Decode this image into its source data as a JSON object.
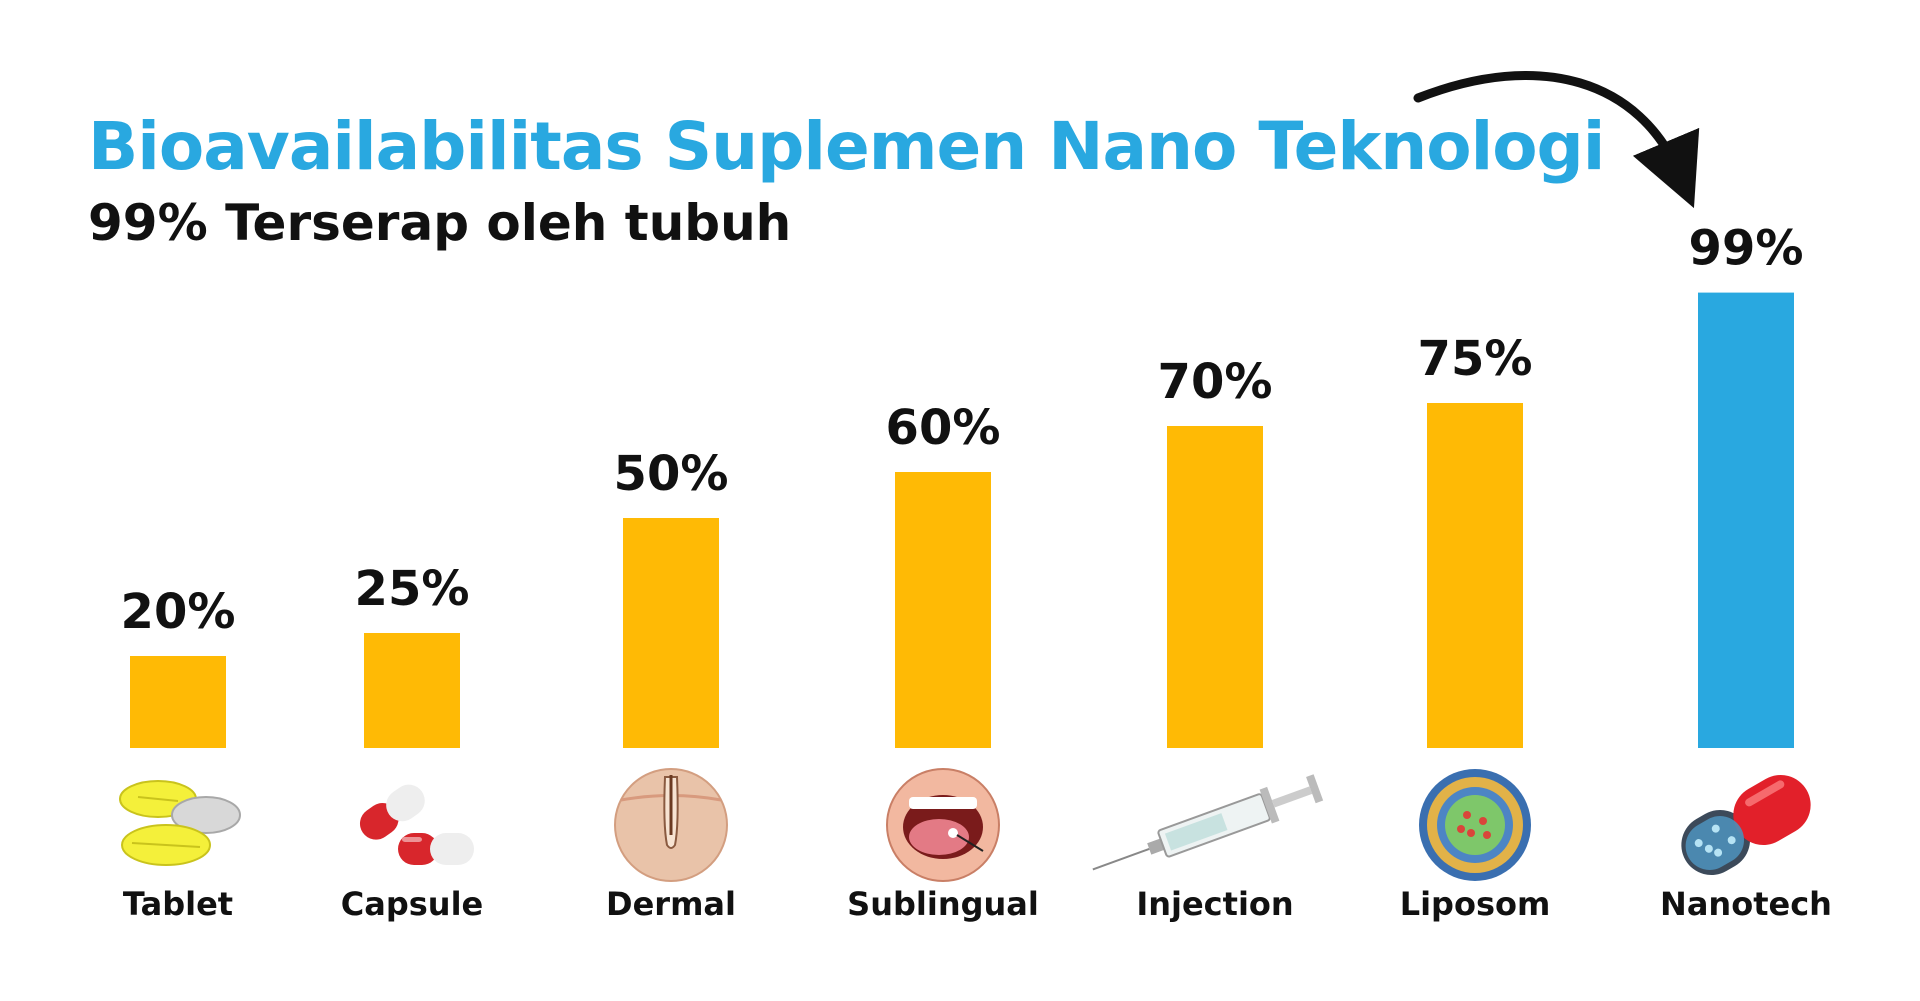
{
  "header": {
    "title": "Bioavailabilitas Suplemen Nano Teknologi",
    "subtitle": "99% Terserap oleh tubuh"
  },
  "colors": {
    "title": "#29a8e0",
    "bar_default": "#ffba05",
    "bar_highlight": "#29a8e0",
    "text": "#111111"
  },
  "chart_data": {
    "type": "bar",
    "title": "Bioavailabilitas Suplemen Nano Teknologi",
    "subtitle": "99% Terserap oleh tubuh",
    "categories": [
      "Tablet",
      "Capsule",
      "Dermal",
      "Sublingual",
      "Injection",
      "Liposom",
      "Nanotech"
    ],
    "values": [
      20,
      25,
      50,
      60,
      70,
      75,
      99
    ],
    "value_labels": [
      "20%",
      "25%",
      "50%",
      "60%",
      "70%",
      "75%",
      "99%"
    ],
    "icons": [
      "tablet-icon",
      "capsule-icon",
      "dermal-icon",
      "sublingual-icon",
      "injection-icon",
      "liposome-icon",
      "nanotech-capsule-icon"
    ],
    "highlight": "Nanotech",
    "annotation": "arrow-pointing-to-nanotech",
    "ylim": [
      0,
      100
    ],
    "grid": false,
    "axes_visible": false
  }
}
